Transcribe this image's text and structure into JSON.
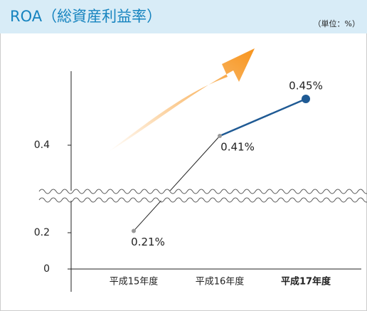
{
  "chart_data": {
    "type": "line",
    "title": "ROA（総資産利益率）",
    "unit": "（単位：%）",
    "categories": [
      "平成15年度",
      "平成16年度",
      "平成17年度"
    ],
    "values": [
      0.21,
      0.41,
      0.45
    ],
    "value_labels": [
      "0.21%",
      "0.41%",
      "0.45%"
    ],
    "colors": [
      "#222222",
      "#1f5a94"
    ],
    "ylim": [
      0,
      0.48
    ],
    "yticks": [
      0,
      0.2,
      0.4
    ],
    "broken_axis": true
  }
}
